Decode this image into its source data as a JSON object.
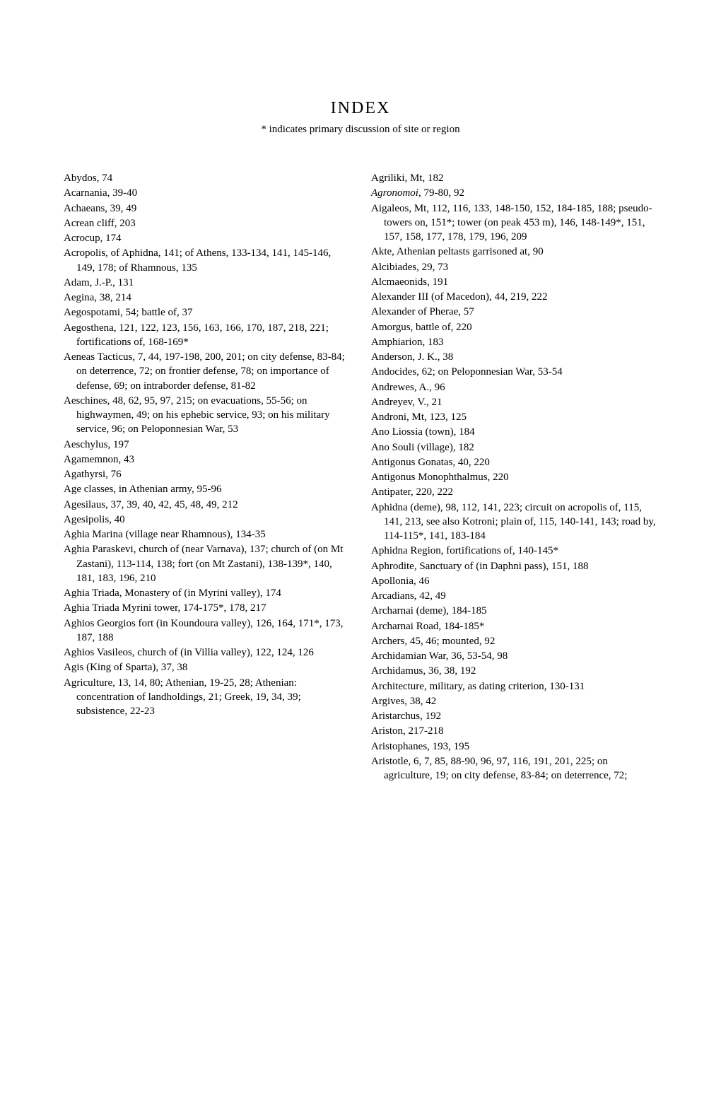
{
  "title": "INDEX",
  "subtitle": "* indicates primary discussion of site or region",
  "leftColumn": [
    {
      "text": "Abydos, 74"
    },
    {
      "text": "Acarnania, 39-40"
    },
    {
      "text": "Achaeans, 39, 49"
    },
    {
      "text": "Acrean cliff, 203"
    },
    {
      "text": "Acrocup, 174"
    },
    {
      "text": "Acropolis, of Aphidna, 141; of Athens, 133-134, 141, 145-146, 149, 178; of Rhamnous, 135"
    },
    {
      "text": "Adam, J.-P., 131"
    },
    {
      "text": "Aegina, 38, 214"
    },
    {
      "text": "Aegospotami, 54; battle of, 37"
    },
    {
      "text": "Aegosthena, 121, 122, 123, 156, 163, 166, 170, 187, 218, 221; fortifications of, 168-169*"
    },
    {
      "text": "Aeneas Tacticus, 7, 44, 197-198, 200, 201; on city defense, 83-84; on deterrence, 72; on frontier defense, 78; on importance of defense, 69; on intraborder defense, 81-82"
    },
    {
      "text": "Aeschines, 48, 62, 95, 97, 215; on evacuations, 55-56; on highwaymen, 49; on his ephebic service, 93; on his military service, 96; on Peloponnesian War, 53"
    },
    {
      "text": "Aeschylus, 197"
    },
    {
      "text": "Agamemnon, 43"
    },
    {
      "text": "Agathyrsi, 76"
    },
    {
      "text": "Age classes, in Athenian army, 95-96"
    },
    {
      "text": "Agesilaus, 37, 39, 40, 42, 45, 48, 49, 212"
    },
    {
      "text": "Agesipolis, 40"
    },
    {
      "text": "Aghia Marina (village near Rhamnous), 134-35"
    },
    {
      "text": "Aghia Paraskevi, church of (near Varnava), 137; church of (on Mt Zastani), 113-114, 138; fort (on Mt Zastani), 138-139*, 140, 181, 183, 196, 210"
    },
    {
      "text": "Aghia Triada, Monastery of (in Myrini valley), 174"
    },
    {
      "text": "Aghia Triada Myrini tower, 174-175*, 178, 217"
    },
    {
      "text": "Aghios Georgios fort (in Koundoura valley), 126, 164, 171*, 173, 187, 188"
    },
    {
      "text": "Aghios Vasileos, church of (in Villia valley), 122, 124, 126"
    },
    {
      "text": "Agis (King of Sparta), 37, 38"
    },
    {
      "text": "Agriculture, 13, 14, 80; Athenian, 19-25, 28; Athenian: concentration of landholdings, 21; Greek, 19, 34, 39; subsistence, 22-23"
    }
  ],
  "rightColumn": [
    {
      "text": "Agriliki, Mt, 182"
    },
    {
      "text": "Agronomoi, 79-80, 92",
      "italic": true
    },
    {
      "text": "Aigaleos, Mt, 112, 116, 133, 148-150, 152, 184-185, 188; pseudo-towers on, 151*; tower (on peak 453 m), 146, 148-149*, 151, 157, 158, 177, 178, 179, 196, 209"
    },
    {
      "text": "Akte, Athenian peltasts garrisoned at, 90"
    },
    {
      "text": "Alcibiades, 29, 73"
    },
    {
      "text": "Alcmaeonids, 191"
    },
    {
      "text": "Alexander III (of Macedon), 44, 219, 222"
    },
    {
      "text": "Alexander of Pherae, 57"
    },
    {
      "text": "Amorgus, battle of, 220"
    },
    {
      "text": "Amphiarion, 183"
    },
    {
      "text": "Anderson, J. K., 38"
    },
    {
      "text": "Andocides, 62; on Peloponnesian War, 53-54"
    },
    {
      "text": "Andrewes, A., 96"
    },
    {
      "text": "Andreyev, V., 21"
    },
    {
      "text": "Androni, Mt, 123, 125"
    },
    {
      "text": "Ano Liossia (town), 184"
    },
    {
      "text": "Ano Souli (village), 182"
    },
    {
      "text": "Antigonus Gonatas, 40, 220"
    },
    {
      "text": "Antigonus Monophthalmus, 220"
    },
    {
      "text": "Antipater, 220, 222"
    },
    {
      "text": "Aphidna (deme), 98, 112, 141, 223; circuit on acropolis of, 115, 141, 213, see also Kotroni; plain of, 115, 140-141, 143; road by, 114-115*, 141, 183-184"
    },
    {
      "text": "Aphidna Region, fortifications of, 140-145*"
    },
    {
      "text": "Aphrodite, Sanctuary of (in Daphni pass), 151, 188"
    },
    {
      "text": "Apollonia, 46"
    },
    {
      "text": "Arcadians, 42, 49"
    },
    {
      "text": "Archarnai (deme), 184-185"
    },
    {
      "text": "Archarnai Road, 184-185*"
    },
    {
      "text": "Archers, 45, 46; mounted, 92"
    },
    {
      "text": "Archidamian War, 36, 53-54, 98"
    },
    {
      "text": "Archidamus, 36, 38, 192"
    },
    {
      "text": "Architecture, military, as dating criterion, 130-131"
    },
    {
      "text": "Argives, 38, 42"
    },
    {
      "text": "Aristarchus, 192"
    },
    {
      "text": "Ariston, 217-218"
    },
    {
      "text": "Aristophanes, 193, 195"
    },
    {
      "text": "Aristotle, 6, 7, 85, 88-90, 96, 97, 116, 191, 201, 225; on agriculture, 19; on city defense, 83-84; on deterrence, 72;"
    }
  ]
}
